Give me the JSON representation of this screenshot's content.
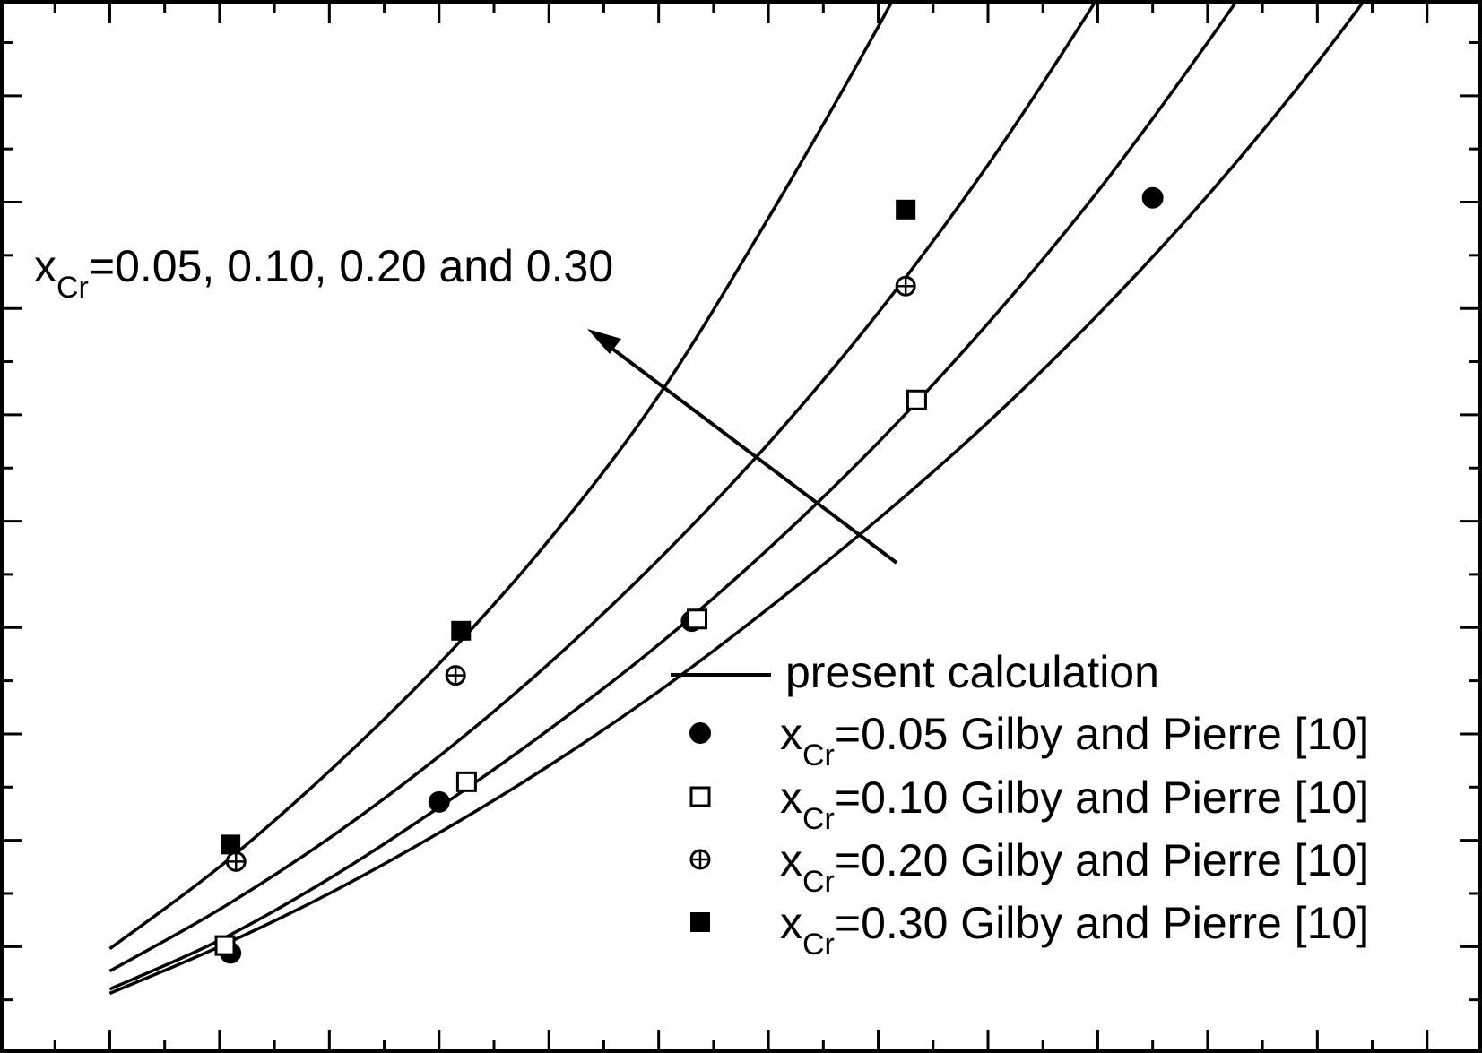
{
  "chart_data": {
    "type": "line",
    "title": "",
    "xlabel": "",
    "ylabel": "",
    "xlim": [
      0,
      13.5
    ],
    "ylim": [
      0,
      9.9
    ],
    "grid": false,
    "legend_position": "bottom-right",
    "annotation": {
      "var": "x",
      "sub": "Cr",
      "text": "=0.05, 0.10, 0.20 and 0.30"
    },
    "line_legend_label": "present calculation",
    "curves": [
      {
        "x": [
          1,
          2,
          3,
          4,
          5,
          6,
          7,
          8,
          9,
          10,
          11,
          12,
          13
        ],
        "y": [
          0.56,
          1.0,
          1.5,
          2.07,
          2.7,
          3.4,
          4.18,
          5.02,
          5.93,
          6.94,
          8.06,
          9.31,
          10.7
        ]
      },
      {
        "x": [
          1,
          2,
          3,
          4,
          5,
          6,
          7,
          8,
          9,
          10,
          11,
          12
        ],
        "y": [
          0.6,
          1.06,
          1.64,
          2.31,
          3.04,
          3.84,
          4.74,
          5.74,
          6.86,
          8.1,
          9.5,
          11.0
        ]
      },
      {
        "x": [
          1,
          2,
          3,
          4,
          5,
          6,
          7,
          8,
          9,
          10,
          11
        ],
        "y": [
          0.77,
          1.35,
          2.02,
          2.79,
          3.66,
          4.64,
          5.73,
          6.96,
          8.35,
          9.92,
          11.6
        ]
      },
      {
        "x": [
          1,
          2,
          3,
          4,
          5,
          6,
          7,
          8,
          9
        ],
        "y": [
          0.98,
          1.75,
          2.65,
          3.66,
          4.82,
          6.18,
          7.85,
          9.65,
          11.6
        ]
      }
    ],
    "series": [
      {
        "name": "=0.05 Gilby and Pierre [10]",
        "sub": "Cr",
        "marker": "filled-circle",
        "points": [
          [
            2.1,
            0.94
          ],
          [
            4.0,
            2.36
          ],
          [
            6.3,
            4.06
          ],
          [
            10.5,
            8.04
          ]
        ]
      },
      {
        "name": "=0.10 Gilby and Pierre [10]",
        "sub": "Cr",
        "marker": "open-square",
        "points": [
          [
            2.05,
            1.01
          ],
          [
            4.25,
            2.55
          ],
          [
            6.35,
            4.08
          ],
          [
            8.35,
            6.14
          ]
        ]
      },
      {
        "name": "=0.20 Gilby and Pierre [10]",
        "sub": "Cr",
        "marker": "circle-plus",
        "points": [
          [
            2.15,
            1.8
          ],
          [
            4.15,
            3.55
          ],
          [
            8.25,
            7.21
          ]
        ]
      },
      {
        "name": "=0.30 Gilby and Pierre [10]",
        "sub": "Cr",
        "marker": "filled-square",
        "points": [
          [
            2.1,
            1.96
          ],
          [
            4.2,
            3.97
          ],
          [
            8.25,
            7.93
          ]
        ]
      }
    ],
    "legend_var": "x"
  }
}
